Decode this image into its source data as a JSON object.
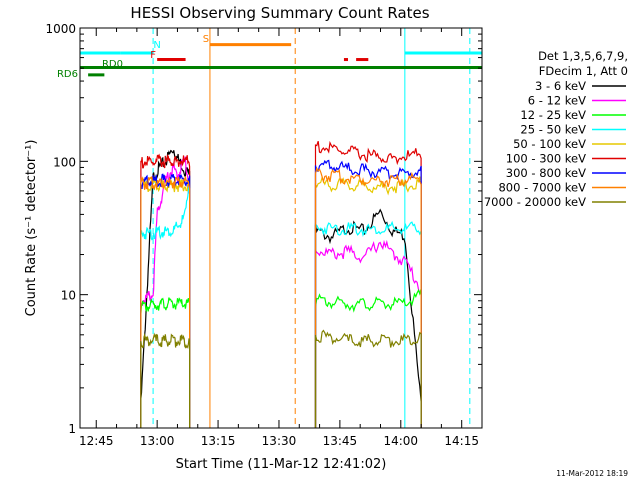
{
  "title": "HESSI Observing Summary Count Rates",
  "footer_date": "11-Mar-2012 18:19",
  "legend": {
    "header": [
      "Det 1,3,5,6,7,9,",
      "FDecim 1, Att 0"
    ],
    "entries": [
      {
        "label": "3 - 6 keV",
        "color": "#000000"
      },
      {
        "label": "6 - 12 keV",
        "color": "#ff00ff"
      },
      {
        "label": "12 - 25 keV",
        "color": "#00ff00"
      },
      {
        "label": "25 - 50 keV",
        "color": "#00ffff"
      },
      {
        "label": "50 - 100 keV",
        "color": "#e6c800"
      },
      {
        "label": "100 - 300 keV",
        "color": "#e00000"
      },
      {
        "label": "300 - 800 keV",
        "color": "#0000ff"
      },
      {
        "label": "800 - 7000 keV",
        "color": "#ff8000"
      },
      {
        "label": "7000 - 20000 keV",
        "color": "#808000"
      }
    ]
  },
  "flag_labels": {
    "N": {
      "text": "N",
      "color": "#00ffff"
    },
    "S": {
      "text": "S",
      "color": "#ff8000"
    },
    "F": {
      "text": "F",
      "color": "#e00000"
    },
    "RD0": {
      "text": "RD0",
      "color": "#008000"
    },
    "RD6": {
      "text": "RD6",
      "color": "#008000"
    }
  },
  "chart_data": {
    "type": "line",
    "title": "HESSI Observing Summary Count Rates",
    "xlabel": "Start Time (11-Mar-12 12:41:02)",
    "ylabel": "Count Rate (s⁻¹ detector⁻¹)",
    "yscale": "log",
    "ylim": [
      1,
      1000
    ],
    "xlim": [
      "12:41",
      "14:20"
    ],
    "x_tick_labels": [
      "12:45",
      "13:00",
      "13:15",
      "13:30",
      "13:45",
      "14:00",
      "14:15"
    ],
    "y_tick_labels": [
      "1",
      "10",
      "100",
      "1000"
    ],
    "segments": [
      {
        "start": "12:56",
        "end": "13:08"
      },
      {
        "start": "13:39",
        "end": "14:05"
      }
    ],
    "series": [
      {
        "name": "3 - 6 keV",
        "color": "#000000",
        "seg1": {
          "t": [
            "12:56",
            "12:59",
            "13:00",
            "13:02",
            "13:04",
            "13:05",
            "13:06",
            "13:07",
            "13:08"
          ],
          "y": [
            1.5,
            75,
            85,
            100,
            125,
            105,
            95,
            85,
            80
          ]
        },
        "seg2": {
          "t": [
            "13:39",
            "13:43",
            "13:47",
            "13:51",
            "13:55",
            "13:58",
            "14:01",
            "14:05"
          ],
          "y": [
            30,
            27,
            32,
            30,
            42,
            30,
            28,
            1.5
          ]
        }
      },
      {
        "name": "6 - 12 keV",
        "color": "#ff00ff",
        "seg1": {
          "t": [
            "12:56",
            "12:59",
            "13:00",
            "13:02",
            "13:04",
            "13:05",
            "13:06",
            "13:07",
            "13:08"
          ],
          "y": [
            9,
            10,
            40,
            70,
            90,
            75,
            95,
            100,
            60
          ]
        },
        "seg2": {
          "t": [
            "13:39",
            "13:43",
            "13:47",
            "13:51",
            "13:55",
            "13:58",
            "14:01",
            "14:05"
          ],
          "y": [
            22,
            20,
            21,
            19,
            25,
            20,
            18,
            11
          ]
        }
      },
      {
        "name": "12 - 25 keV",
        "color": "#00ff00",
        "seg1": {
          "t": [
            "12:56",
            "13:00",
            "13:04",
            "13:08"
          ],
          "y": [
            8,
            8.5,
            8.5,
            8.5
          ]
        },
        "seg2": {
          "t": [
            "13:39",
            "13:47",
            "13:55",
            "14:01",
            "14:05"
          ],
          "y": [
            9,
            8.5,
            8.5,
            8.5,
            10
          ]
        }
      },
      {
        "name": "25 - 50 keV",
        "color": "#00ffff",
        "seg1": {
          "t": [
            "12:56",
            "12:59",
            "13:00",
            "13:02",
            "13:04",
            "13:05",
            "13:06",
            "13:07",
            "13:08"
          ],
          "y": [
            29,
            29,
            29,
            30,
            30,
            32,
            35,
            40,
            80
          ]
        },
        "seg2": {
          "t": [
            "13:39",
            "13:47",
            "13:55",
            "14:01",
            "14:05"
          ],
          "y": [
            32,
            31,
            31,
            31,
            32
          ]
        }
      },
      {
        "name": "50 - 100 keV",
        "color": "#e6c800",
        "seg1": {
          "t": [
            "12:56",
            "13:04",
            "13:08"
          ],
          "y": [
            66,
            66,
            66
          ]
        },
        "seg2": {
          "t": [
            "13:39",
            "13:47",
            "13:55",
            "14:01",
            "14:05"
          ],
          "y": [
            68,
            66,
            64,
            65,
            70
          ]
        }
      },
      {
        "name": "100 - 300 keV",
        "color": "#e00000",
        "seg1": {
          "t": [
            "12:56",
            "13:04",
            "13:08"
          ],
          "y": [
            98,
            100,
            100
          ]
        },
        "seg2": {
          "t": [
            "13:39",
            "13:45",
            "13:51",
            "13:57",
            "14:01",
            "14:05"
          ],
          "y": [
            130,
            120,
            112,
            105,
            108,
            115
          ]
        }
      },
      {
        "name": "300 - 800 keV",
        "color": "#0000ff",
        "seg1": {
          "t": [
            "12:56",
            "13:04",
            "13:08"
          ],
          "y": [
            70,
            72,
            72
          ]
        },
        "seg2": {
          "t": [
            "13:39",
            "13:47",
            "13:55",
            "14:01",
            "14:05"
          ],
          "y": [
            95,
            88,
            82,
            80,
            85
          ]
        }
      },
      {
        "name": "800 - 7000 keV",
        "color": "#ff8000",
        "seg1": {
          "t": [
            "12:56",
            "13:04",
            "13:08"
          ],
          "y": [
            68,
            70,
            70
          ]
        },
        "seg2": {
          "t": [
            "13:39",
            "13:47",
            "13:55",
            "14:01",
            "14:05"
          ],
          "y": [
            80,
            75,
            72,
            72,
            75
          ]
        }
      },
      {
        "name": "7000 - 20000 keV",
        "color": "#808000",
        "seg1": {
          "t": [
            "12:56",
            "13:04",
            "13:08"
          ],
          "y": [
            4.5,
            4.5,
            4.5
          ]
        },
        "seg2": {
          "t": [
            "13:39",
            "13:47",
            "13:55",
            "14:01",
            "14:05"
          ],
          "y": [
            5,
            4.5,
            4.5,
            4.5,
            5
          ]
        }
      }
    ],
    "flag_bars": [
      {
        "flag": "SAA/N cyan",
        "color": "#00ffff",
        "y": 650,
        "intervals": [
          [
            "12:41",
            "12:51"
          ],
          [
            "12:51",
            "12:59"
          ],
          [
            "14:01",
            "14:20"
          ]
        ]
      },
      {
        "flag": "S orange",
        "color": "#ff8000",
        "y": 750,
        "intervals": [
          [
            "13:13",
            "13:33"
          ]
        ]
      },
      {
        "flag": "F red",
        "color": "#e00000",
        "y": 580,
        "intervals": [
          [
            "13:00",
            "13:07"
          ],
          [
            "13:46",
            "13:47"
          ],
          [
            "13:49",
            "13:52"
          ]
        ]
      },
      {
        "flag": "RD0 green",
        "color": "#008000",
        "y": 505,
        "intervals": [
          [
            "12:41",
            "14:20"
          ]
        ]
      },
      {
        "flag": "RD6 green",
        "color": "#008000",
        "y": 445,
        "intervals": [
          [
            "12:43",
            "12:47"
          ]
        ]
      }
    ],
    "vertical_markers": [
      {
        "t": "12:41",
        "color": "#00ffff",
        "style": "solid"
      },
      {
        "t": "12:59",
        "color": "#00ffff",
        "style": "dashed"
      },
      {
        "t": "13:13",
        "color": "#ff8000",
        "style": "solid"
      },
      {
        "t": "13:34",
        "color": "#ff8000",
        "style": "dashed"
      },
      {
        "t": "14:01",
        "color": "#00ffff",
        "style": "solid"
      },
      {
        "t": "14:17",
        "color": "#00ffff",
        "style": "dashed"
      }
    ]
  }
}
